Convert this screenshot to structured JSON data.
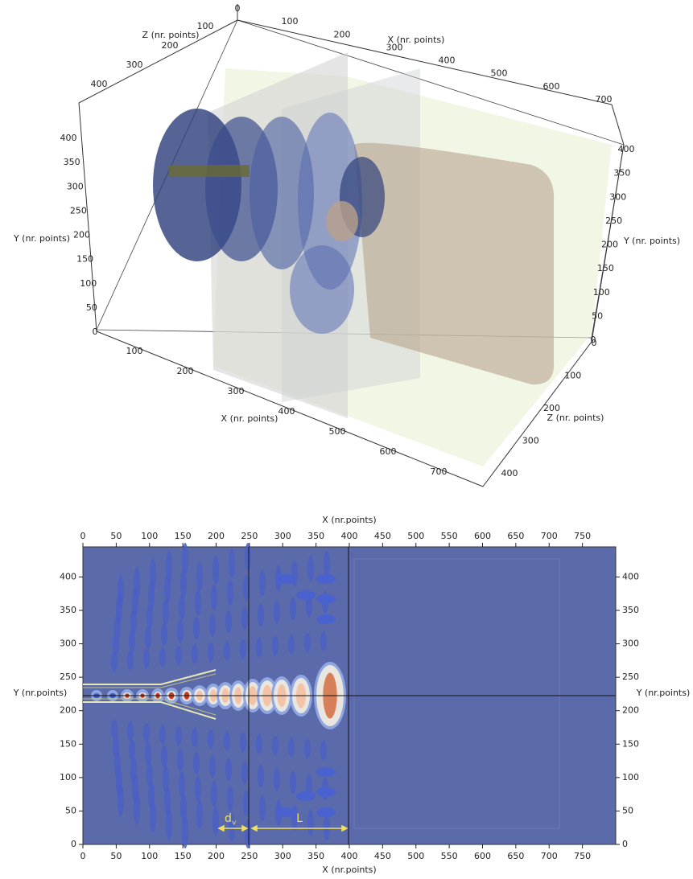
{
  "top_view": {
    "x_axis": {
      "label": "X (nr. points)",
      "ticks": [
        0,
        100,
        200,
        300,
        400,
        500,
        600,
        700
      ]
    },
    "z_axis": {
      "label": "Z (nr. points)",
      "ticks": [
        100,
        200,
        300,
        400
      ]
    },
    "y_axis_left": {
      "label": "Y (nr. points)",
      "ticks": [
        0,
        50,
        100,
        150,
        200,
        250,
        300,
        350,
        400
      ]
    },
    "x_axis_front": {
      "label": "X (nr. points)",
      "ticks": [
        100,
        200,
        300,
        400,
        500,
        600,
        700
      ]
    },
    "y_axis_right": {
      "label": "Y (nr. points)",
      "ticks": [
        0,
        50,
        100,
        150,
        200,
        250,
        300,
        350,
        400
      ]
    },
    "z_axis_right": {
      "label": "Z (nr. points)",
      "ticks": [
        0,
        100,
        200,
        300,
        400
      ]
    }
  },
  "bottom_view": {
    "x_label_top": "X (nr.points)",
    "x_label_bottom": "X (nr.points)",
    "y_label_left": "Y (nr.points)",
    "y_label_right": "Y (nr.points)",
    "xlim": [
      0,
      800
    ],
    "ylim": [
      0,
      445
    ],
    "xticks": [
      0,
      50,
      100,
      150,
      200,
      250,
      300,
      350,
      400,
      450,
      500,
      550,
      600,
      650,
      700,
      750
    ],
    "yticks": [
      0,
      50,
      100,
      150,
      200,
      250,
      300,
      350,
      400
    ],
    "annotations": {
      "dv": "d",
      "dv_sub": "v",
      "L": "L"
    }
  }
}
